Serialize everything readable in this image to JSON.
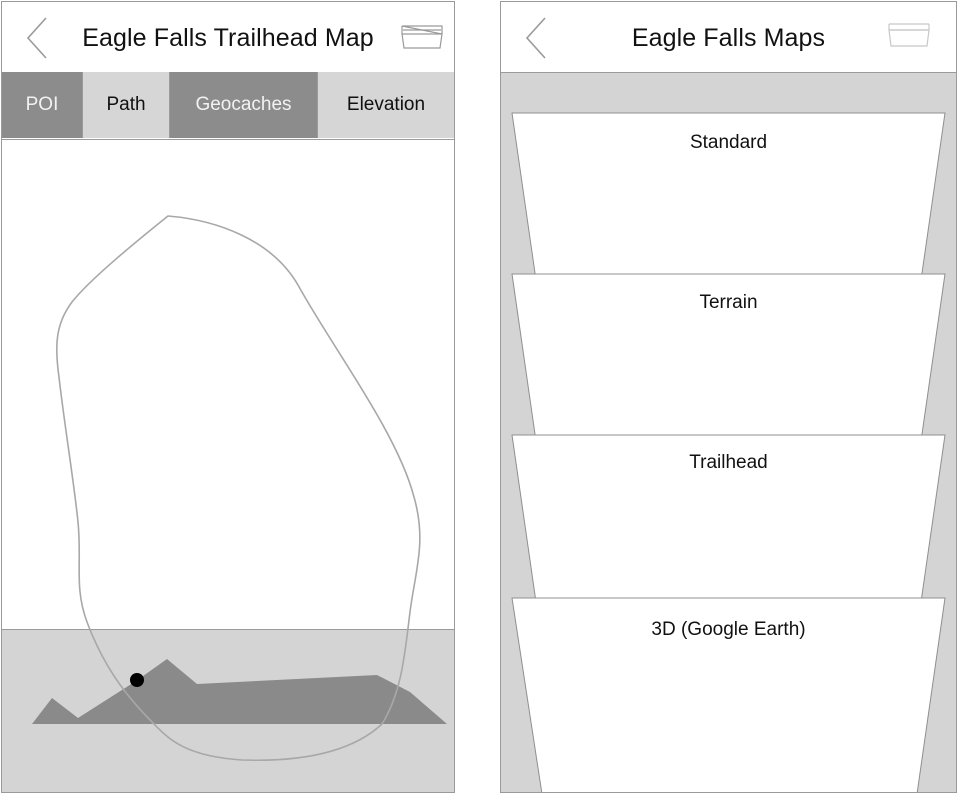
{
  "left_screen": {
    "title": "Eagle Falls Trailhead Map",
    "tabs": [
      {
        "label": "POI",
        "style": "dark"
      },
      {
        "label": "Path",
        "style": "light"
      },
      {
        "label": "Geocaches",
        "style": "dark"
      },
      {
        "label": "Elevation",
        "style": "light"
      }
    ],
    "icons": {
      "back": "chevron-left-icon",
      "menu": "stacked-layers-icon"
    }
  },
  "right_screen": {
    "title": "Eagle Falls Maps",
    "map_types": [
      {
        "label": "Standard"
      },
      {
        "label": "Terrain"
      },
      {
        "label": "Trailhead"
      },
      {
        "label": "3D (Google Earth)"
      }
    ],
    "icons": {
      "back": "chevron-left-icon",
      "menu": "stacked-layers-icon"
    }
  },
  "colors": {
    "dark_tab": "#8c8c8c",
    "light_tab": "#d6d6d6",
    "panel_bg": "#d4d4d4",
    "elevation_fill": "#8a8a8a",
    "trail_stroke": "#a8a8a8",
    "marker": "#000000"
  }
}
